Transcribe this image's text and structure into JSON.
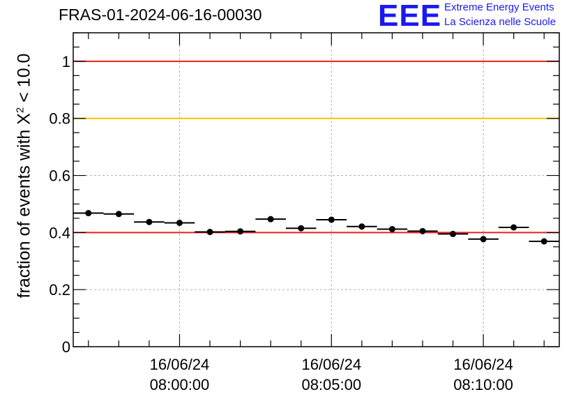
{
  "title": "FRAS-01-2024-06-16-00030",
  "logo": {
    "mark": "EEE",
    "line1": "Extreme Energy Events",
    "line2": "La Scienza nelle Scuole",
    "color": "#1a1aee"
  },
  "chart_data": {
    "type": "scatter",
    "title": "FRAS-01-2024-06-16-00030",
    "ylabel_parts": {
      "prefix": "fraction of events with ",
      "symbol": "X",
      "sup": "2",
      "suffix": " < 10.0"
    },
    "xlim": [
      "2024-06-16 07:56:30",
      "2024-06-16 08:12:30"
    ],
    "ylim": [
      0,
      1.1
    ],
    "yticks": [
      0,
      0.2,
      0.4,
      0.6,
      0.8,
      1
    ],
    "yticklabels": [
      "0",
      "0.2",
      "0.4",
      "0.6",
      "0.8",
      "1"
    ],
    "xticks": [
      "2024-06-16 08:00:00",
      "2024-06-16 08:05:00",
      "2024-06-16 08:10:00"
    ],
    "xticklabels": [
      [
        "16/06/24",
        "08:00:00"
      ],
      [
        "16/06/24",
        "08:05:00"
      ],
      [
        "16/06/24",
        "08:10:00"
      ]
    ],
    "grid": true,
    "reference_lines": [
      {
        "y": 1.0,
        "color": "#e8201a"
      },
      {
        "y": 0.8,
        "color": "#f5c400"
      },
      {
        "y": 0.4,
        "color": "#e8201a"
      }
    ],
    "series": [
      {
        "x": [
          "2024-06-16 07:57:00",
          "2024-06-16 07:58:00",
          "2024-06-16 07:59:00",
          "2024-06-16 08:00:00",
          "2024-06-16 08:01:00",
          "2024-06-16 08:02:00",
          "2024-06-16 08:03:00",
          "2024-06-16 08:04:00",
          "2024-06-16 08:05:00",
          "2024-06-16 08:06:00",
          "2024-06-16 08:07:00",
          "2024-06-16 08:08:00",
          "2024-06-16 08:09:00",
          "2024-06-16 08:10:00",
          "2024-06-16 08:11:00",
          "2024-06-16 08:12:00"
        ],
        "y": [
          0.468,
          0.465,
          0.437,
          0.434,
          0.402,
          0.404,
          0.447,
          0.415,
          0.445,
          0.421,
          0.412,
          0.405,
          0.395,
          0.377,
          0.418,
          0.369
        ],
        "color": "#000000"
      }
    ]
  }
}
